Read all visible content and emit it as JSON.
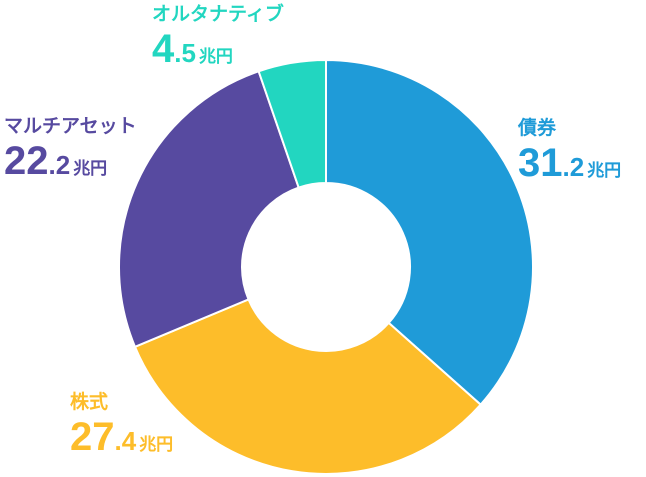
{
  "chart_data": {
    "type": "pie",
    "unit": "兆円",
    "categories": [
      "債券",
      "株式",
      "マルチアセット",
      "オルタナティブ"
    ],
    "values": [
      31.2,
      27.4,
      22.2,
      4.5
    ],
    "value_int": [
      "31",
      "27",
      "22",
      "4"
    ],
    "value_dec": [
      ".2",
      ".4",
      ".2",
      ".5"
    ],
    "colors": [
      "#1f9bd8",
      "#fdbd2a",
      "#574aa0",
      "#22d6c0"
    ],
    "donut": true,
    "legend": "none"
  }
}
